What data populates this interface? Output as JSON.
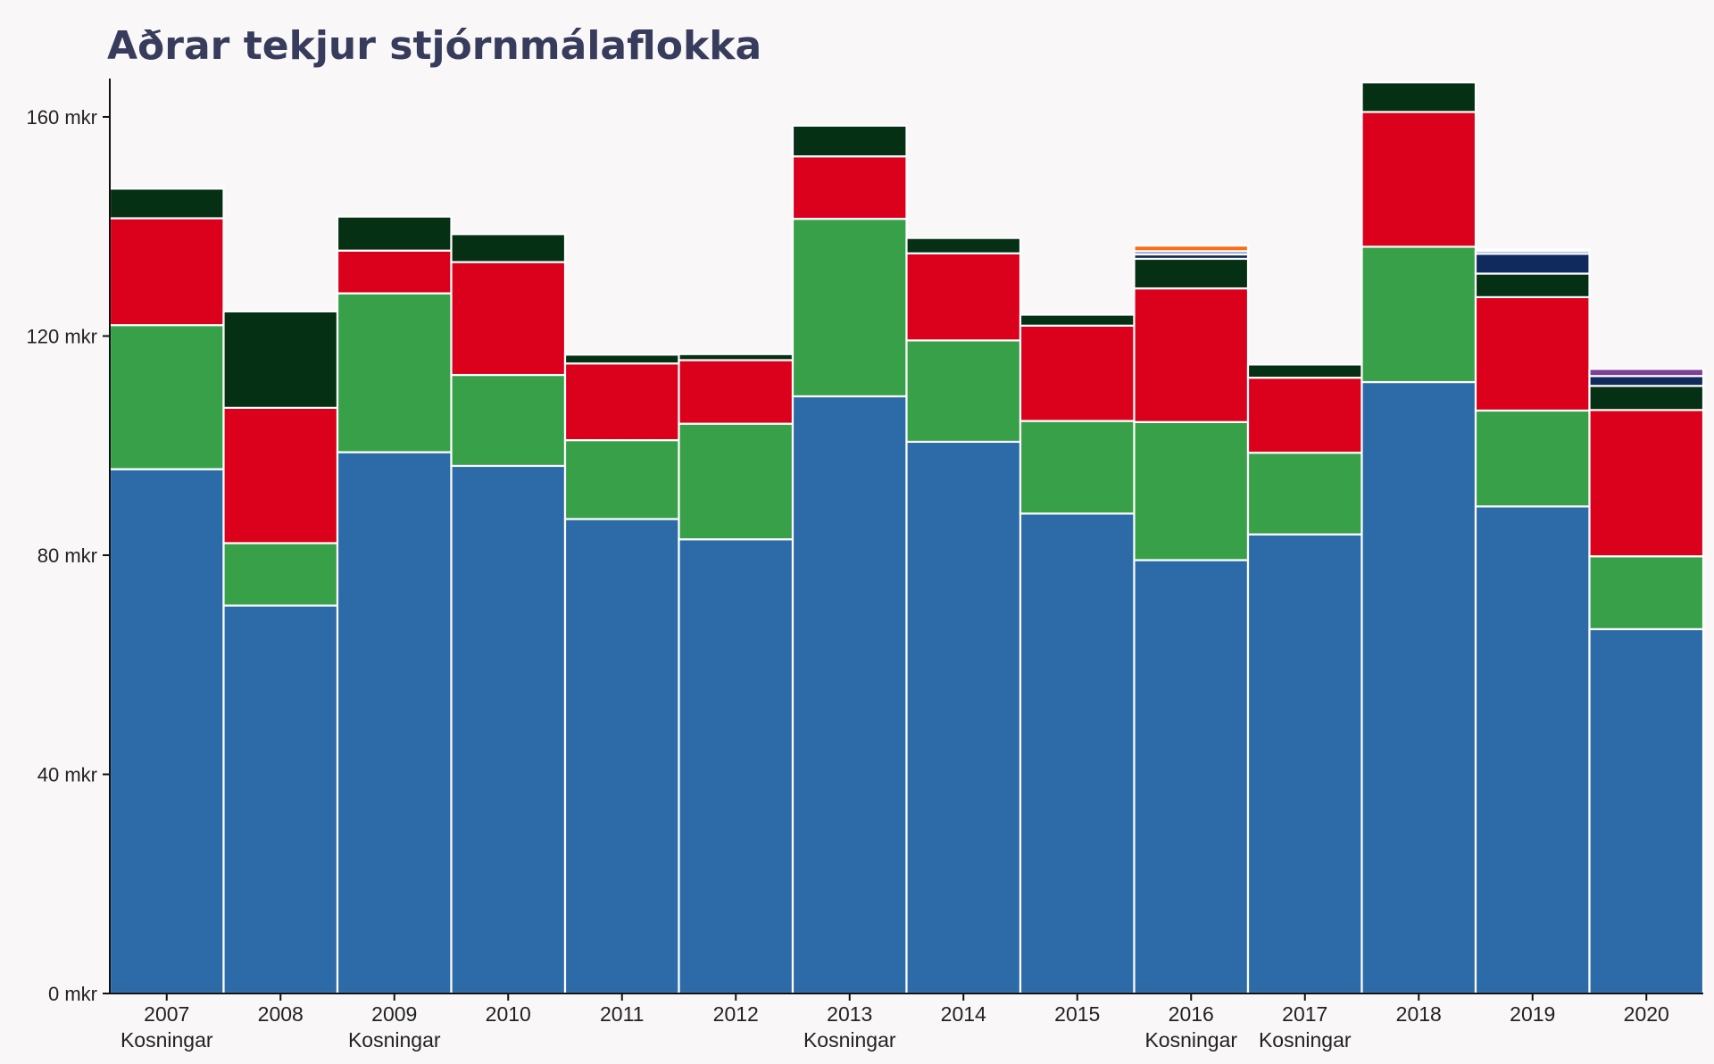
{
  "chart_data": {
    "type": "bar",
    "stacked": true,
    "title": "Aðrar tekjur stjórnmálaflokka",
    "ylim": [
      0,
      167
    ],
    "y_ticks": [
      {
        "value": 0,
        "label": "0 mkr"
      },
      {
        "value": 40,
        "label": "40 mkr"
      },
      {
        "value": 80,
        "label": "80 mkr"
      },
      {
        "value": 120,
        "label": "120 mkr"
      },
      {
        "value": 160,
        "label": "160 mkr"
      }
    ],
    "grid": false,
    "legend": "none",
    "categories": [
      "2007",
      "2008",
      "2009",
      "2010",
      "2011",
      "2012",
      "2013",
      "2014",
      "2015",
      "2016",
      "2017",
      "2018",
      "2019",
      "2020"
    ],
    "sublabels": [
      "Kosningar",
      "",
      "Kosningar",
      "",
      "",
      "",
      "Kosningar",
      "",
      "",
      "Kosningar",
      "Kosningar",
      "",
      "",
      ""
    ],
    "series": [
      {
        "color": "#2d6aa8",
        "values": [
          95.7,
          70.8,
          98.8,
          96.3,
          86.6,
          82.9,
          109.0,
          100.7,
          87.6,
          79.1,
          83.8,
          111.6,
          88.9,
          66.5
        ]
      },
      {
        "color": "#38a049",
        "values": [
          26.3,
          11.4,
          29.0,
          16.6,
          14.4,
          21.1,
          32.4,
          18.5,
          16.9,
          25.2,
          14.9,
          24.7,
          17.5,
          13.3
        ]
      },
      {
        "color": "#db001b",
        "values": [
          19.5,
          24.7,
          7.8,
          20.6,
          14.0,
          11.6,
          11.4,
          15.9,
          17.4,
          24.4,
          13.7,
          24.6,
          20.7,
          26.7
        ]
      },
      {
        "color": "#063014",
        "values": [
          5.4,
          17.6,
          6.2,
          5.1,
          1.6,
          1.1,
          5.6,
          2.8,
          2.0,
          5.4,
          2.4,
          5.4,
          4.3,
          4.4
        ]
      },
      {
        "color": "#102a5e",
        "values": [
          0,
          0,
          0,
          0,
          0,
          0,
          0,
          0,
          0,
          0.8,
          0,
          0,
          3.6,
          1.8
        ]
      },
      {
        "color": "#7b8ec9",
        "values": [
          0,
          0,
          0,
          0,
          0,
          0,
          0,
          0,
          0,
          0.6,
          0,
          0,
          0.5,
          0
        ]
      },
      {
        "color": "#ff6a13",
        "values": [
          0,
          0,
          0,
          0,
          0,
          0,
          0,
          0,
          0,
          1.0,
          0,
          0,
          0.3,
          0
        ]
      },
      {
        "color": "#7d3f98",
        "values": [
          0,
          0,
          0,
          0,
          0,
          0,
          0,
          0,
          0,
          0,
          0,
          0,
          0,
          1.3
        ]
      }
    ]
  }
}
